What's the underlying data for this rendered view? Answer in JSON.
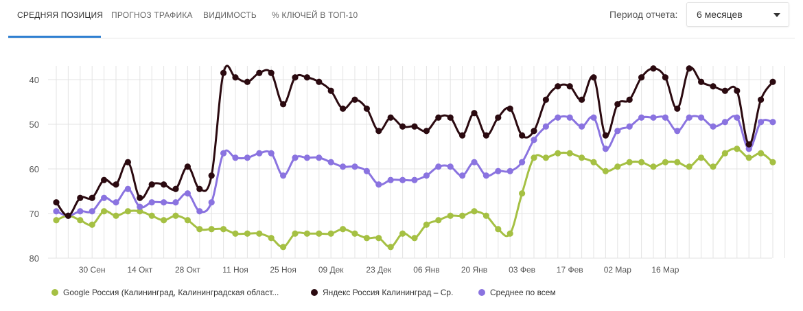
{
  "tabs": [
    {
      "label": "СРЕДНЯЯ ПОЗИЦИЯ"
    },
    {
      "label": "ПРОГНОЗ ТРАФИКА"
    },
    {
      "label": "ВИДИМОСТЬ"
    },
    {
      "label": "% КЛЮЧЕЙ В ТОП-10"
    }
  ],
  "period": {
    "label": "Период отчета:",
    "value": "6 месяцев"
  },
  "colors": {
    "google": "#a5c043",
    "yandex": "#2b0a10",
    "avg": "#8a73e0",
    "grid": "#e3e3e3",
    "accent": "#2f7fd1"
  },
  "chart_data": {
    "type": "line",
    "title": "",
    "xlabel": "",
    "ylabel": "",
    "y_inverted": true,
    "ylim": [
      40,
      80
    ],
    "yticks": [
      "40",
      "50",
      "60",
      "70",
      "80"
    ],
    "x_count": 62,
    "x_ticks": [
      {
        "index": 3,
        "label": "30 Сен"
      },
      {
        "index": 7,
        "label": "14 Окт"
      },
      {
        "index": 11,
        "label": "28 Окт"
      },
      {
        "index": 15,
        "label": "11 Ноя"
      },
      {
        "index": 19,
        "label": "25 Ноя"
      },
      {
        "index": 23,
        "label": "09 Дек"
      },
      {
        "index": 27,
        "label": "23 Дек"
      },
      {
        "index": 31,
        "label": "06 Янв"
      },
      {
        "index": 35,
        "label": "20 Янв"
      },
      {
        "index": 39,
        "label": "03 Фев"
      },
      {
        "index": 43,
        "label": "17 Фев"
      },
      {
        "index": 47,
        "label": "02 Мар"
      },
      {
        "index": 51,
        "label": "16 Мар"
      }
    ],
    "series": [
      {
        "key": "google",
        "name": "Google Россия (Калининград, Калининградская област...",
        "values": [
          71.5,
          70.5,
          71.5,
          72.5,
          69.5,
          70.5,
          69.5,
          69.5,
          70.5,
          71.5,
          70.5,
          71.5,
          73.5,
          73.5,
          73.5,
          74.5,
          74.5,
          74.5,
          75.5,
          77.5,
          74.5,
          74.5,
          74.5,
          74.5,
          73.5,
          74.5,
          75.5,
          75.5,
          77.5,
          74.5,
          75.5,
          72.5,
          71.5,
          70.5,
          70.5,
          69.5,
          70.5,
          73.5,
          74.5,
          65.5,
          57.5,
          57.5,
          56.5,
          56.5,
          57.5,
          58.5,
          60.5,
          59.5,
          58.5,
          58.5,
          59.5,
          58.5,
          58.5,
          59.5,
          57.5,
          59.5,
          56.5,
          55.5,
          57.5,
          56.5,
          58.5,
          null
        ]
      },
      {
        "key": "yandex",
        "name": "Яндекс Россия Калининград – Ср.",
        "values": [
          67.5,
          70.5,
          66.5,
          66.5,
          62.5,
          63.5,
          58.5,
          66.5,
          63.5,
          63.5,
          64.5,
          59.5,
          64.5,
          61.5,
          38.5,
          39.5,
          40.5,
          38.5,
          38.5,
          45.5,
          39.5,
          39.5,
          40.5,
          42.5,
          46.5,
          44.5,
          46.5,
          51.5,
          48.5,
          50.5,
          50.5,
          51.5,
          48.5,
          48.5,
          52.5,
          47.5,
          52.5,
          48.5,
          46.5,
          52.5,
          51.5,
          44.5,
          41.5,
          41.5,
          44.5,
          39.5,
          52.5,
          45.5,
          44.5,
          39.5,
          37.5,
          39.5,
          46.5,
          37.5,
          40.5,
          41.5,
          42.5,
          42.5,
          54.5,
          44.5,
          40.5,
          null
        ]
      },
      {
        "key": "avg",
        "name": "Среднее по всем",
        "values": [
          69.5,
          70.5,
          69.5,
          69.5,
          66.5,
          67.5,
          64.5,
          68.5,
          67.5,
          67.5,
          67.5,
          65.5,
          69.5,
          67.5,
          56.5,
          57.5,
          57.5,
          56.5,
          56.5,
          61.5,
          57.5,
          57.5,
          57.5,
          58.5,
          59.5,
          59.5,
          60.5,
          63.5,
          62.5,
          62.5,
          62.5,
          61.5,
          59.5,
          59.5,
          61.5,
          58.5,
          61.5,
          60.5,
          60.5,
          58.5,
          53.5,
          50.5,
          48.5,
          48.5,
          50.5,
          48.5,
          55.5,
          51.5,
          50.5,
          48.5,
          48.5,
          48.5,
          51.5,
          48.5,
          48.5,
          50.5,
          49.5,
          48.5,
          55.5,
          49.5,
          49.5,
          null
        ]
      }
    ]
  }
}
